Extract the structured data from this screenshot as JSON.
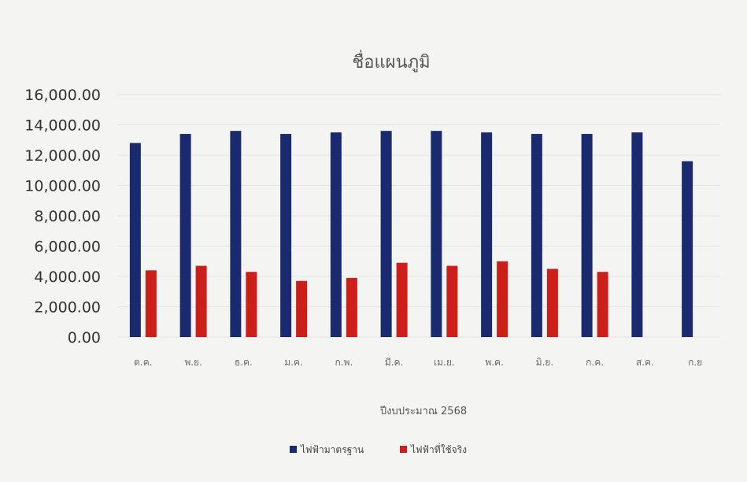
{
  "chart_data": {
    "type": "bar",
    "title": "ชื่อแผนภูมิ",
    "xlabel": "ปีงบประมาณ 2568",
    "ylabel": "",
    "ylim": [
      0,
      16000
    ],
    "yticks": [
      "0.00",
      "2,000.00",
      "4,000.00",
      "6,000.00",
      "8,000.00",
      "10,000.00",
      "12,000.00",
      "14,000.00",
      "16,000.00"
    ],
    "categories": [
      "ต.ค.",
      "พ.ย.",
      "ธ.ค.",
      "ม.ค.",
      "ก.พ.",
      "มี.ค.",
      "เม.ย.",
      "พ.ค.",
      "มิ.ย.",
      "ก.ค.",
      "ส.ค.",
      "ก.ย"
    ],
    "series": [
      {
        "name": "ไฟฟ้ามาตรฐาน",
        "color": "#1a2a6e",
        "values": [
          12800,
          13400,
          13600,
          13400,
          13500,
          13600,
          13600,
          13500,
          13400,
          13400,
          13500,
          11600
        ]
      },
      {
        "name": "ไฟฟ้าที่ใช้จริง",
        "color": "#cc1f1a",
        "values": [
          4400,
          4700,
          4300,
          3700,
          3900,
          4900,
          4700,
          5000,
          4500,
          4300,
          null,
          null
        ]
      }
    ],
    "grid": true,
    "legend_position": "bottom"
  }
}
